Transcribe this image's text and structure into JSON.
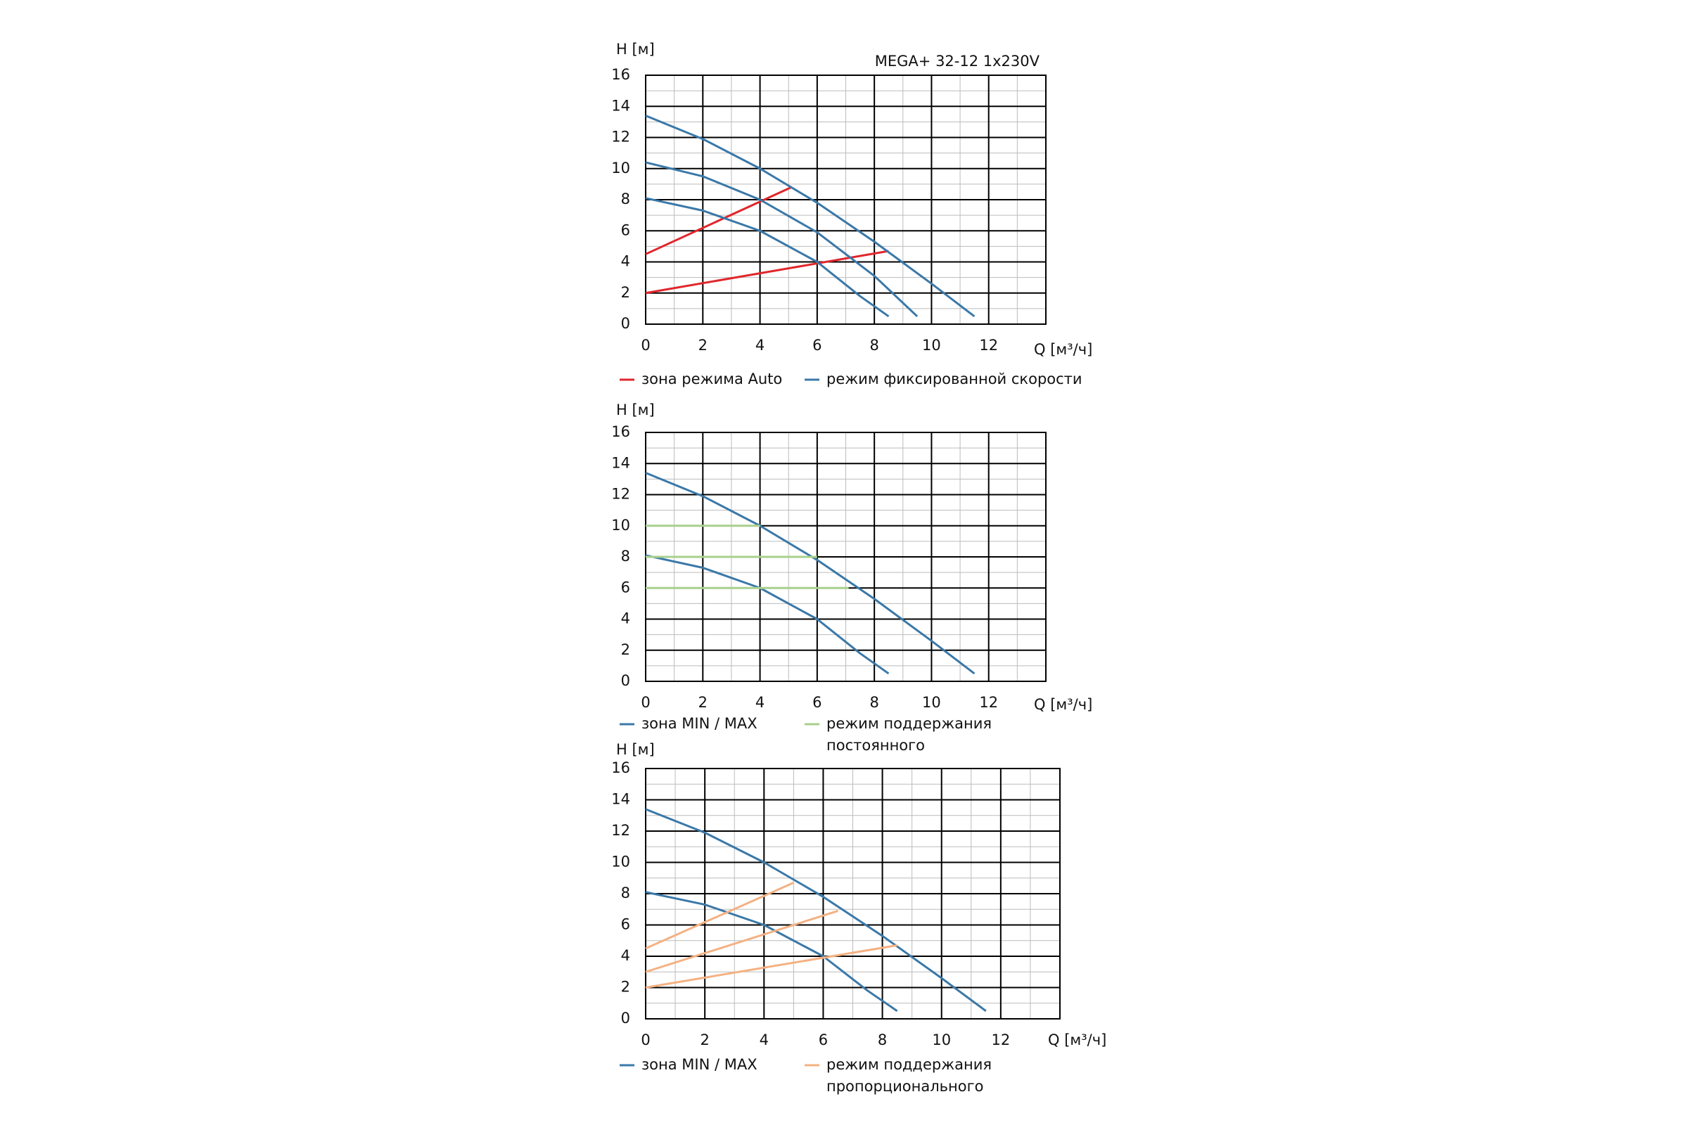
{
  "chart_data": [
    {
      "type": "line",
      "title": "MEGA+ 32-12 1x230V",
      "y_label": "H [м]",
      "x_label": "Q [м³/ч]",
      "xlim": [
        0,
        14
      ],
      "xticks": [
        0,
        2,
        4,
        6,
        8,
        10,
        12
      ],
      "ylim": [
        0,
        16
      ],
      "yticks": [
        0,
        2,
        4,
        6,
        8,
        10,
        12,
        14,
        16
      ],
      "grid": true,
      "series": [
        {
          "name": "зона режима Auto",
          "color": "#e0262b",
          "x": [
            0,
            5.1,
            null,
            0,
            8.5
          ],
          "values": [
            4.5,
            8.8,
            null,
            2,
            4.7
          ]
        },
        {
          "name": "режим фиксированной скорости",
          "color": "#3a78a8",
          "x": [
            0,
            2,
            4,
            6,
            8,
            10,
            11.5,
            null,
            0,
            2,
            4,
            6,
            8,
            9.5,
            null,
            0,
            2,
            4,
            6,
            7.5,
            8.5
          ],
          "values": [
            13.4,
            11.9,
            10,
            7.8,
            5.3,
            2.6,
            0.5,
            null,
            10.4,
            9.5,
            8,
            5.9,
            3.1,
            0.5,
            null,
            8.1,
            7.3,
            6,
            4,
            1.8,
            0.5
          ]
        }
      ]
    },
    {
      "type": "line",
      "y_label": "H [м]",
      "x_label": "Q [м³/ч]",
      "xlim": [
        0,
        14
      ],
      "xticks": [
        0,
        2,
        4,
        6,
        8,
        10,
        12
      ],
      "ylim": [
        0,
        16
      ],
      "yticks": [
        0,
        2,
        4,
        6,
        8,
        10,
        12,
        14,
        16
      ],
      "grid": true,
      "series": [
        {
          "name": "зона MIN / MAX",
          "color": "#3a78a8",
          "x": [
            0,
            2,
            4,
            6,
            8,
            10,
            11.5,
            null,
            0,
            2,
            4,
            6,
            7.5,
            8.5
          ],
          "values": [
            13.4,
            11.9,
            10,
            7.8,
            5.3,
            2.6,
            0.5,
            null,
            8.1,
            7.3,
            6,
            4,
            1.8,
            0.5
          ]
        },
        {
          "name": "режим поддержания постоянного давления",
          "color": "#a8d08d",
          "x": [
            0,
            4,
            null,
            0,
            6,
            null,
            0,
            7.1
          ],
          "values": [
            10,
            10,
            null,
            8,
            8,
            null,
            6,
            6
          ]
        }
      ]
    },
    {
      "type": "line",
      "y_label": "H [м]",
      "x_label": "Q [м³/ч]",
      "xlim": [
        0,
        14
      ],
      "xticks": [
        0,
        2,
        4,
        6,
        8,
        10,
        12
      ],
      "ylim": [
        0,
        16
      ],
      "yticks": [
        0,
        2,
        4,
        6,
        8,
        10,
        12,
        14,
        16
      ],
      "grid": true,
      "series": [
        {
          "name": "зона MIN / MAX",
          "color": "#3a78a8",
          "x": [
            0,
            2,
            4,
            6,
            8,
            10,
            11.5,
            null,
            0,
            2,
            4,
            6,
            7.5,
            8.5
          ],
          "values": [
            13.4,
            11.9,
            10,
            7.8,
            5.3,
            2.6,
            0.5,
            null,
            8.1,
            7.3,
            6,
            4,
            1.8,
            0.5
          ]
        },
        {
          "name": "режим поддержания пропорционального давления",
          "color": "#f4b183",
          "x": [
            0,
            5,
            null,
            0,
            6.5,
            null,
            0,
            8.5
          ],
          "values": [
            4.5,
            8.7,
            null,
            3,
            6.9,
            null,
            2,
            4.7
          ]
        }
      ]
    }
  ]
}
